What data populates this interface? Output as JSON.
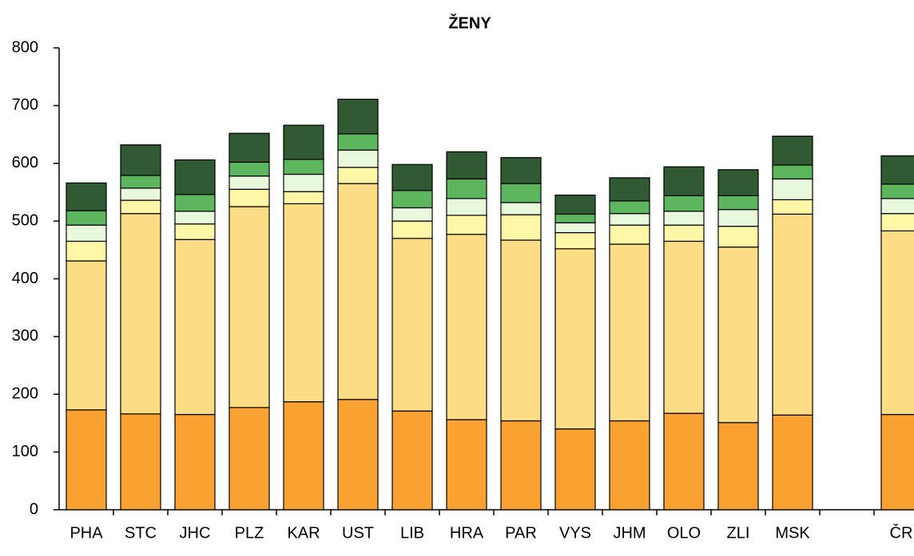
{
  "chart_data": {
    "type": "stacked_bar",
    "title": "ŽENY",
    "categories": [
      "PHA",
      "STC",
      "JHC",
      "PLZ",
      "KAR",
      "UST",
      "LIB",
      "HRA",
      "PAR",
      "VYS",
      "JHM",
      "OLO",
      "ZLI",
      "MSK",
      null,
      "ČR"
    ],
    "series": [
      {
        "color": "#f9a232",
        "values": [
          173,
          166,
          165,
          177,
          187,
          191,
          171,
          156,
          154,
          140,
          154,
          167,
          151,
          164,
          null,
          165
        ]
      },
      {
        "color": "#fddc86",
        "values": [
          258,
          347,
          303,
          348,
          343,
          374,
          299,
          321,
          313,
          312,
          306,
          298,
          304,
          348,
          null,
          318
        ]
      },
      {
        "color": "#fff6a8",
        "values": [
          34,
          23,
          27,
          30,
          21,
          28,
          30,
          33,
          44,
          28,
          33,
          28,
          36,
          25,
          null,
          30
        ]
      },
      {
        "color": "#e8f8dc",
        "values": [
          28,
          21,
          22,
          23,
          30,
          30,
          23,
          29,
          21,
          17,
          20,
          24,
          29,
          36,
          null,
          26
        ]
      },
      {
        "color": "#5db55e",
        "values": [
          25,
          22,
          29,
          24,
          26,
          28,
          30,
          34,
          33,
          15,
          22,
          27,
          24,
          24,
          null,
          25
        ]
      },
      {
        "color": "#2f5a32",
        "values": [
          48,
          53,
          60,
          50,
          59,
          60,
          45,
          47,
          45,
          33,
          40,
          50,
          45,
          50,
          null,
          49
        ]
      }
    ],
    "ylim": [
      0,
      800
    ],
    "yticks": [
      0,
      100,
      200,
      300,
      400,
      500,
      600,
      700,
      800
    ],
    "grid": false
  }
}
